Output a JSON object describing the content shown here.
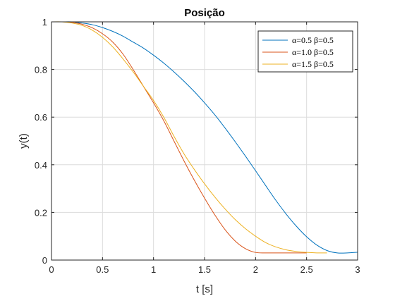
{
  "chart_data": {
    "type": "line",
    "title": "Posição",
    "xlabel": "t [s]",
    "ylabel": "y(t)",
    "xlim": [
      0,
      3
    ],
    "ylim": [
      0,
      1
    ],
    "xticks": [
      0,
      0.5,
      1,
      1.5,
      2,
      2.5,
      3
    ],
    "xtick_labels": [
      "0",
      "0.5",
      "1",
      "1.5",
      "2",
      "2.5",
      "3"
    ],
    "yticks": [
      0,
      0.2,
      0.4,
      0.6,
      0.8,
      1
    ],
    "ytick_labels": [
      "0",
      "0.2",
      "0.4",
      "0.6",
      "0.8",
      "1"
    ],
    "grid": true,
    "legend_position": "top-right",
    "series": [
      {
        "name": "α=0.5 β=0.5",
        "color": "#0072BD",
        "x": [
          0,
          0.1,
          0.2,
          0.3,
          0.4,
          0.5,
          0.6,
          0.7,
          0.8,
          0.9,
          1.0,
          1.1,
          1.2,
          1.3,
          1.4,
          1.5,
          1.6,
          1.7,
          1.8,
          1.9,
          2.0,
          2.1,
          2.2,
          2.3,
          2.4,
          2.5,
          2.6,
          2.7,
          2.8,
          2.9,
          3.0
        ],
        "y": [
          1.0,
          1.0,
          1.0,
          0.995,
          0.988,
          0.976,
          0.96,
          0.94,
          0.915,
          0.89,
          0.86,
          0.827,
          0.79,
          0.75,
          0.707,
          0.66,
          0.61,
          0.555,
          0.497,
          0.437,
          0.375,
          0.312,
          0.25,
          0.193,
          0.142,
          0.098,
          0.063,
          0.04,
          0.03,
          0.03,
          0.033
        ]
      },
      {
        "name": "α=1.0 β=0.5",
        "color": "#D95319",
        "x": [
          0,
          0.1,
          0.2,
          0.3,
          0.4,
          0.5,
          0.6,
          0.7,
          0.8,
          0.9,
          1.0,
          1.1,
          1.2,
          1.3,
          1.4,
          1.5,
          1.6,
          1.7,
          1.8,
          1.9,
          2.0,
          2.1,
          2.2,
          2.3,
          2.4,
          2.5
        ],
        "y": [
          1.0,
          1.0,
          0.998,
          0.99,
          0.975,
          0.95,
          0.915,
          0.865,
          0.8,
          0.73,
          0.66,
          0.585,
          0.5,
          0.415,
          0.335,
          0.26,
          0.19,
          0.128,
          0.08,
          0.048,
          0.032,
          0.03,
          0.03,
          0.03,
          0.03,
          0.03
        ]
      },
      {
        "name": "α=1.5 β=0.5",
        "color": "#EDB120",
        "x": [
          0,
          0.1,
          0.2,
          0.3,
          0.4,
          0.5,
          0.6,
          0.7,
          0.8,
          0.9,
          1.0,
          1.1,
          1.2,
          1.3,
          1.4,
          1.5,
          1.6,
          1.7,
          1.8,
          1.9,
          2.0,
          2.1,
          2.2,
          2.3,
          2.4,
          2.5,
          2.6,
          2.7
        ],
        "y": [
          1.0,
          1.0,
          0.995,
          0.985,
          0.965,
          0.935,
          0.895,
          0.845,
          0.79,
          0.73,
          0.67,
          0.6,
          0.52,
          0.445,
          0.38,
          0.32,
          0.265,
          0.215,
          0.17,
          0.132,
          0.1,
          0.073,
          0.055,
          0.043,
          0.036,
          0.032,
          0.03,
          0.03
        ]
      }
    ]
  }
}
